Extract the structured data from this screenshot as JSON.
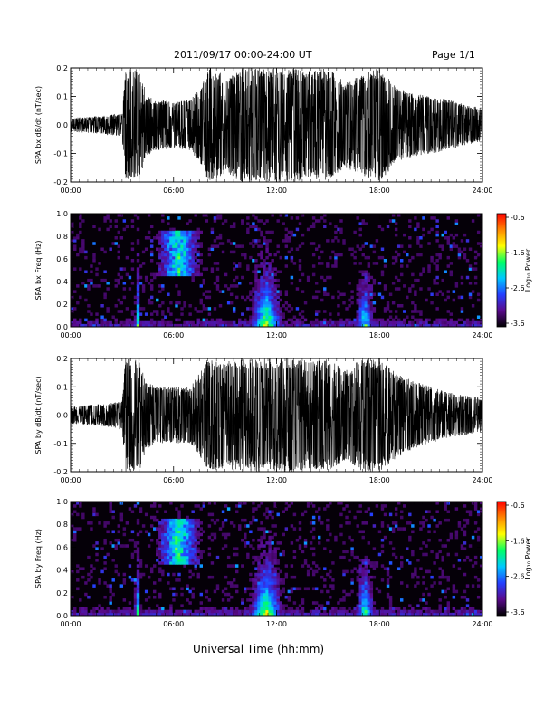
{
  "header": {
    "date_range": "2011/09/17  00:00-24:00 UT",
    "page_label": "Page 1/1"
  },
  "footer": {
    "xlabel": "Universal Time (hh:mm)"
  },
  "colorbar": {
    "title": "Log₁₀ Power",
    "ticks": [
      "-0.6",
      "-1.6",
      "-2.6",
      "-3.6"
    ],
    "range": [
      -3.6,
      -0.6
    ],
    "colors": [
      "#000000",
      "#5a0a8c",
      "#2440ff",
      "#00c8ff",
      "#00ff66",
      "#ffff00",
      "#ff8800",
      "#ff0000"
    ]
  },
  "chart_data": [
    {
      "type": "line",
      "ylabel": "SPA bx dB/dt (nT/sec)",
      "xlim": [
        "00:00",
        "24:00"
      ],
      "xticks": [
        "00:00",
        "06:00",
        "12:00",
        "18:00",
        "24:00"
      ],
      "ylim": [
        -0.2,
        0.2
      ],
      "yticks": [
        "0.2",
        "0.1",
        "0.0",
        "-0.1",
        "-0.2"
      ],
      "series": [
        {
          "x_hours": [
            0,
            1,
            2,
            3,
            3.2,
            3.5,
            3.8,
            4,
            4.4,
            5,
            6,
            7,
            7.6,
            8,
            8.4,
            9,
            10,
            10.4,
            11,
            11.5,
            12,
            12.5,
            13,
            14,
            15,
            16,
            17,
            18,
            19,
            20,
            21,
            22,
            23,
            24
          ],
          "envelope_abs": [
            0.025,
            0.028,
            0.033,
            0.04,
            0.2,
            0.2,
            0.2,
            0.2,
            0.11,
            0.09,
            0.08,
            0.09,
            0.14,
            0.2,
            0.2,
            0.17,
            0.2,
            0.2,
            0.2,
            0.2,
            0.2,
            0.2,
            0.2,
            0.19,
            0.2,
            0.15,
            0.18,
            0.2,
            0.13,
            0.11,
            0.1,
            0.09,
            0.07,
            0.06
          ]
        }
      ]
    },
    {
      "type": "heatmap",
      "ylabel": "SPA bx Freq (Hz)",
      "xlim": [
        "00:00",
        "24:00"
      ],
      "xticks": [
        "00:00",
        "06:00",
        "12:00",
        "18:00",
        "24:00"
      ],
      "ylim": [
        0.0,
        1.0
      ],
      "yticks": [
        "1.0",
        "0.8",
        "0.6",
        "0.4",
        "0.2",
        "0.0"
      ],
      "features": [
        {
          "t_hours": [
            3.7,
            4.1
          ],
          "f_hz": [
            0.0,
            1.0
          ],
          "log_power": -2.0
        },
        {
          "t_hours": [
            4.8,
            7.8
          ],
          "f_hz": [
            0.45,
            0.85
          ],
          "log_power": -2.5
        },
        {
          "t_hours": [
            10.3,
            12.5
          ],
          "f_hz": [
            0.0,
            1.0
          ],
          "log_power": -1.6
        },
        {
          "t_hours": [
            16.5,
            17.8
          ],
          "f_hz": [
            0.0,
            0.5
          ],
          "log_power": -2.2
        }
      ]
    },
    {
      "type": "line",
      "ylabel": "SPA by dB/dt (nT/sec)",
      "xlim": [
        "00:00",
        "24:00"
      ],
      "xticks": [
        "00:00",
        "06:00",
        "12:00",
        "18:00",
        "24:00"
      ],
      "ylim": [
        -0.2,
        0.2
      ],
      "yticks": [
        "0.2",
        "0.1",
        "0.0",
        "-0.1",
        "-0.2"
      ],
      "series": [
        {
          "x_hours": [
            0,
            1,
            2,
            3,
            3.2,
            3.5,
            3.8,
            4,
            4.4,
            5,
            6,
            7,
            7.6,
            8,
            8.4,
            9,
            10,
            10.4,
            11,
            11.5,
            12,
            12.5,
            13,
            14,
            15,
            16,
            17,
            18,
            19,
            20,
            21,
            22,
            23,
            24
          ],
          "envelope_abs": [
            0.03,
            0.035,
            0.04,
            0.05,
            0.2,
            0.2,
            0.2,
            0.2,
            0.12,
            0.1,
            0.1,
            0.1,
            0.16,
            0.2,
            0.2,
            0.19,
            0.2,
            0.2,
            0.2,
            0.2,
            0.2,
            0.2,
            0.2,
            0.19,
            0.2,
            0.16,
            0.2,
            0.2,
            0.15,
            0.12,
            0.1,
            0.08,
            0.07,
            0.06
          ]
        }
      ]
    },
    {
      "type": "heatmap",
      "ylabel": "SPA by Freq (Hz)",
      "xlim": [
        "00:00",
        "24:00"
      ],
      "xticks": [
        "00:00",
        "06:00",
        "12:00",
        "18:00",
        "24:00"
      ],
      "ylim": [
        0.0,
        1.0
      ],
      "yticks": [
        "1.0",
        "0.8",
        "0.6",
        "0.4",
        "0.2",
        "0.0"
      ],
      "features": [
        {
          "t_hours": [
            3.7,
            4.1
          ],
          "f_hz": [
            0.0,
            1.0
          ],
          "log_power": -2.0
        },
        {
          "t_hours": [
            4.8,
            7.8
          ],
          "f_hz": [
            0.45,
            0.85
          ],
          "log_power": -2.4
        },
        {
          "t_hours": [
            10.3,
            12.5
          ],
          "f_hz": [
            0.0,
            1.0
          ],
          "log_power": -1.5
        },
        {
          "t_hours": [
            16.5,
            17.8
          ],
          "f_hz": [
            0.0,
            0.5
          ],
          "log_power": -2.1
        }
      ]
    }
  ]
}
